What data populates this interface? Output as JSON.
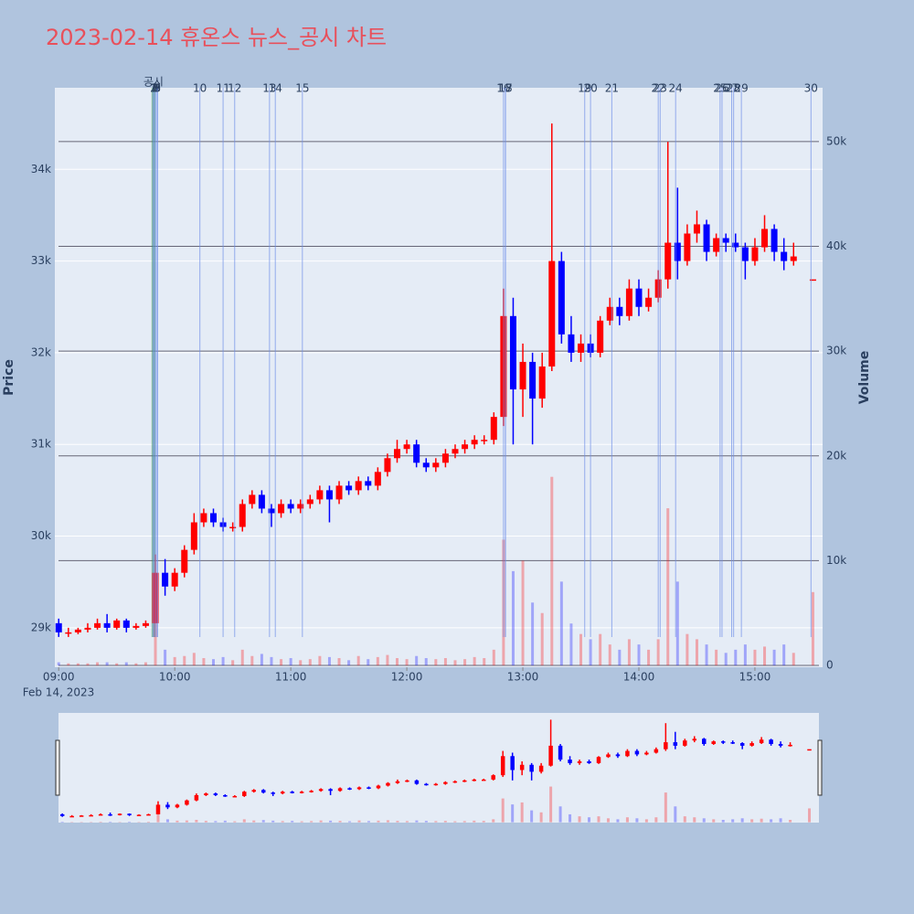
{
  "chart_data": {
    "type": "candlestick",
    "title": "2023-02-14 휴온스 뉴스_공시 차트",
    "y_label": "Price",
    "y2_label": "Volume",
    "x_date_label": "Feb 14, 2023",
    "annotation": "공시",
    "increasing_color": "#ff0000",
    "decreasing_color": "#0000ff",
    "news_color": "#6f8fe8",
    "highlight_color": "#2e8b57",
    "highlight": [
      "09:48",
      "09:50"
    ],
    "xlim": [
      "08:58",
      "15:35"
    ],
    "xticks": [
      "09:00",
      "10:00",
      "11:00",
      "12:00",
      "13:00",
      "14:00",
      "15:00"
    ],
    "ylim": [
      28570,
      34890
    ],
    "yticks": [
      {
        "value": 29000,
        "label": "29k"
      },
      {
        "value": 30000,
        "label": "30k"
      },
      {
        "value": 31000,
        "label": "31k"
      },
      {
        "value": 32000,
        "label": "32k"
      },
      {
        "value": 33000,
        "label": "33k"
      },
      {
        "value": 34000,
        "label": "34k"
      }
    ],
    "y2lim": [
      -170,
      55130
    ],
    "y2ticks": [
      0,
      {
        "value": 10000,
        "label": "10k"
      },
      {
        "value": 20000,
        "label": "20k"
      },
      {
        "value": 30000,
        "label": "30k"
      },
      {
        "value": 40000,
        "label": "40k"
      },
      {
        "value": 50000,
        "label": "50k"
      }
    ],
    "x": [
      "09:00",
      "09:05",
      "09:10",
      "09:15",
      "09:20",
      "09:25",
      "09:30",
      "09:35",
      "09:40",
      "09:45",
      "09:50",
      "09:55",
      "10:00",
      "10:05",
      "10:10",
      "10:15",
      "10:20",
      "10:25",
      "10:30",
      "10:35",
      "10:40",
      "10:45",
      "10:50",
      "10:55",
      "11:00",
      "11:05",
      "11:10",
      "11:15",
      "11:20",
      "11:25",
      "11:30",
      "11:35",
      "11:40",
      "11:45",
      "11:50",
      "11:55",
      "12:00",
      "12:05",
      "12:10",
      "12:15",
      "12:20",
      "12:25",
      "12:30",
      "12:35",
      "12:40",
      "12:45",
      "12:50",
      "12:55",
      "13:00",
      "13:05",
      "13:10",
      "13:15",
      "13:20",
      "13:25",
      "13:30",
      "13:35",
      "13:40",
      "13:45",
      "13:50",
      "13:55",
      "14:00",
      "14:05",
      "14:10",
      "14:15",
      "14:20",
      "14:25",
      "14:30",
      "14:35",
      "14:40",
      "14:45",
      "14:50",
      "14:55",
      "15:00",
      "15:05",
      "15:10",
      "15:15",
      "15:20",
      "15:30"
    ],
    "open": [
      29050,
      28950,
      28950,
      28980,
      29000,
      29050,
      29000,
      29080,
      29000,
      29020,
      29050,
      29600,
      29450,
      29600,
      29850,
      30150,
      30250,
      30150,
      30100,
      30100,
      30350,
      30450,
      30300,
      30250,
      30350,
      30300,
      30350,
      30400,
      30500,
      30400,
      30550,
      30500,
      30600,
      30550,
      30700,
      30850,
      30950,
      31000,
      30800,
      30750,
      30800,
      30900,
      30950,
      31000,
      31050,
      31050,
      31300,
      32400,
      31600,
      31900,
      31500,
      31850,
      33000,
      32200,
      32000,
      32100,
      32000,
      32350,
      32500,
      32400,
      32700,
      32500,
      32600,
      32800,
      33200,
      33000,
      33300,
      33400,
      33100,
      33250,
      33200,
      33150,
      33000,
      33150,
      33350,
      33100,
      33000,
      32800
    ],
    "high": [
      29100,
      29000,
      29000,
      29050,
      29100,
      29150,
      29100,
      29100,
      29050,
      29080,
      29800,
      29750,
      29650,
      29900,
      30250,
      30300,
      30300,
      30200,
      30150,
      30400,
      30500,
      30500,
      30350,
      30400,
      30400,
      30400,
      30450,
      30550,
      30550,
      30600,
      30600,
      30650,
      30650,
      30750,
      30900,
      31050,
      31050,
      31050,
      30850,
      30850,
      30950,
      31000,
      31050,
      31100,
      31100,
      31350,
      32700,
      32600,
      32100,
      32000,
      32000,
      34500,
      33100,
      32400,
      32200,
      32200,
      32400,
      32600,
      32600,
      32800,
      32800,
      32700,
      32900,
      34300,
      33800,
      33400,
      33550,
      33450,
      33300,
      33300,
      33300,
      33200,
      33250,
      33500,
      33400,
      33250,
      33200,
      32800
    ],
    "low": [
      28900,
      28900,
      28930,
      28950,
      28980,
      28950,
      28980,
      28950,
      28980,
      29000,
      29050,
      29350,
      29400,
      29550,
      29800,
      30100,
      30100,
      30050,
      30050,
      30050,
      30300,
      30250,
      30100,
      30200,
      30250,
      30250,
      30300,
      30350,
      30150,
      30350,
      30450,
      30450,
      30500,
      30500,
      30650,
      30800,
      30900,
      30750,
      30700,
      30700,
      30750,
      30850,
      30900,
      30950,
      31000,
      31000,
      31200,
      31000,
      31300,
      31000,
      31400,
      31800,
      32100,
      31900,
      31900,
      31950,
      31950,
      32300,
      32300,
      32350,
      32400,
      32450,
      32550,
      32700,
      32800,
      32950,
      33200,
      33000,
      33050,
      33100,
      33100,
      32800,
      32950,
      33100,
      33000,
      32900,
      32950,
      32800
    ],
    "close": [
      28950,
      28950,
      28980,
      29000,
      29050,
      29000,
      29080,
      29000,
      29020,
      29050,
      29600,
      29450,
      29600,
      29850,
      30150,
      30250,
      30150,
      30100,
      30100,
      30350,
      30450,
      30300,
      30250,
      30350,
      30300,
      30350,
      30400,
      30500,
      30400,
      30550,
      30500,
      30600,
      30550,
      30700,
      30850,
      30950,
      31000,
      30800,
      30750,
      30800,
      30900,
      30950,
      31000,
      31050,
      31050,
      31300,
      32400,
      31600,
      31900,
      31500,
      31850,
      33000,
      32200,
      32000,
      32100,
      32000,
      32350,
      32500,
      32400,
      32700,
      32500,
      32600,
      32800,
      33200,
      33000,
      33300,
      33400,
      33100,
      33250,
      33200,
      33150,
      33000,
      33150,
      33350,
      33100,
      33000,
      33050,
      32800
    ],
    "volume": [
      300,
      200,
      200,
      200,
      300,
      300,
      200,
      300,
      200,
      300,
      6000,
      1500,
      800,
      900,
      1200,
      700,
      600,
      800,
      500,
      1500,
      900,
      1100,
      800,
      600,
      700,
      500,
      600,
      900,
      800,
      700,
      500,
      900,
      600,
      800,
      1000,
      700,
      600,
      900,
      700,
      600,
      700,
      500,
      600,
      800,
      700,
      1500,
      12000,
      9000,
      10000,
      6000,
      5000,
      18000,
      8000,
      4000,
      3000,
      2500,
      3000,
      2000,
      1500,
      2500,
      2000,
      1500,
      2500,
      15000,
      8000,
      3000,
      2500,
      2000,
      1500,
      1200,
      1500,
      2000,
      1500,
      1800,
      1500,
      2000,
      1200,
      7000
    ],
    "news": [
      {
        "x": "09:49",
        "label": "1"
      },
      {
        "x": "09:49",
        "label": "2"
      },
      {
        "x": "09:50",
        "label": "3"
      },
      {
        "x": "09:50",
        "label": "4"
      },
      {
        "x": "09:50",
        "label": "5"
      },
      {
        "x": "09:50",
        "label": "6"
      },
      {
        "x": "09:51",
        "label": "7"
      },
      {
        "x": "09:51",
        "label": "8"
      },
      {
        "x": "09:51",
        "label": "9"
      },
      {
        "x": "10:13",
        "label": "10"
      },
      {
        "x": "10:25",
        "label": "11"
      },
      {
        "x": "10:31",
        "label": "12"
      },
      {
        "x": "10:49",
        "label": "13"
      },
      {
        "x": "10:52",
        "label": "14"
      },
      {
        "x": "11:06",
        "label": "15"
      },
      {
        "x": "12:50",
        "label": "16"
      },
      {
        "x": "12:51",
        "label": "17"
      },
      {
        "x": "12:51",
        "label": "18"
      },
      {
        "x": "13:32",
        "label": "19"
      },
      {
        "x": "13:35",
        "label": "20"
      },
      {
        "x": "13:46",
        "label": "21"
      },
      {
        "x": "14:10",
        "label": "22"
      },
      {
        "x": "14:11",
        "label": "23"
      },
      {
        "x": "14:19",
        "label": "24"
      },
      {
        "x": "14:42",
        "label": "25"
      },
      {
        "x": "14:43",
        "label": "26"
      },
      {
        "x": "14:48",
        "label": "27"
      },
      {
        "x": "14:49",
        "label": "28"
      },
      {
        "x": "14:53",
        "label": "29"
      },
      {
        "x": "15:29",
        "label": "30"
      }
    ]
  }
}
